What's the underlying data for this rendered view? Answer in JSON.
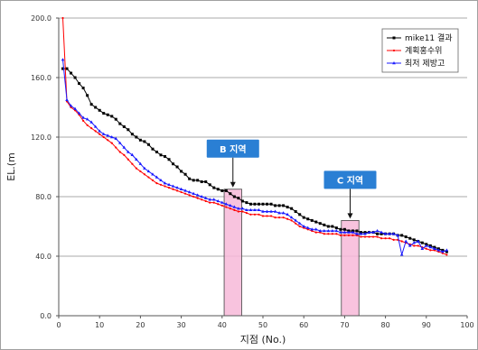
{
  "chart_data": {
    "type": "line",
    "xlabel": "지점 (No.)",
    "ylabel": "EL.(m",
    "xlim": [
      0,
      100
    ],
    "ylim": [
      0,
      200
    ],
    "x_ticks": [
      "0",
      "10",
      "20",
      "30",
      "40",
      "50",
      "60",
      "70",
      "80",
      "90",
      "100"
    ],
    "y_ticks": [
      "0.0",
      "40.0",
      "80.0",
      "120.0",
      "160.0",
      "200.0"
    ],
    "grid": "horizontal",
    "legend_position": "top-right",
    "series": [
      {
        "name": "mike11 결과",
        "color": "#000000",
        "marker": "square",
        "x": [
          1,
          2,
          3,
          4,
          5,
          6,
          7,
          8,
          9,
          10,
          11,
          12,
          13,
          14,
          15,
          16,
          17,
          18,
          19,
          20,
          21,
          22,
          23,
          24,
          25,
          26,
          27,
          28,
          29,
          30,
          31,
          32,
          33,
          34,
          35,
          36,
          37,
          38,
          39,
          40,
          41,
          42,
          43,
          44,
          45,
          46,
          47,
          48,
          49,
          50,
          51,
          52,
          53,
          54,
          55,
          56,
          57,
          58,
          59,
          60,
          61,
          62,
          63,
          64,
          65,
          66,
          67,
          68,
          69,
          70,
          71,
          72,
          73,
          74,
          75,
          76,
          77,
          78,
          79,
          80,
          81,
          82,
          83,
          84,
          85,
          86,
          87,
          88,
          89,
          90,
          91,
          92,
          93,
          94,
          95
        ],
        "y": [
          166,
          166,
          163,
          160,
          156,
          153,
          148,
          142,
          140,
          138,
          136,
          135,
          134,
          132,
          129,
          127,
          125,
          122,
          120,
          118,
          117,
          115,
          112,
          110,
          108,
          107,
          105,
          102,
          100,
          97,
          95,
          92,
          91,
          91,
          90,
          90,
          88,
          86,
          85,
          84,
          84,
          82,
          80,
          79,
          77,
          76,
          75,
          75,
          75,
          75,
          75,
          75,
          74,
          74,
          74,
          73,
          72,
          70,
          68,
          66,
          65,
          64,
          63,
          62,
          61,
          60,
          60,
          59,
          58,
          58,
          57,
          57,
          57,
          56,
          56,
          56,
          56,
          55,
          55,
          55,
          55,
          55,
          54,
          54,
          53,
          52,
          51,
          50,
          49,
          48,
          47,
          46,
          45,
          44,
          43
        ]
      },
      {
        "name": "계획홍수위",
        "color": "#ff0000",
        "marker": "dot",
        "x": [
          1,
          2,
          3,
          4,
          5,
          6,
          7,
          8,
          9,
          10,
          11,
          12,
          13,
          14,
          15,
          16,
          17,
          18,
          19,
          20,
          21,
          22,
          23,
          24,
          25,
          26,
          27,
          28,
          29,
          30,
          31,
          32,
          33,
          34,
          35,
          36,
          37,
          38,
          39,
          40,
          41,
          42,
          43,
          44,
          45,
          46,
          47,
          48,
          49,
          50,
          51,
          52,
          53,
          54,
          55,
          56,
          57,
          58,
          59,
          60,
          61,
          62,
          63,
          64,
          65,
          66,
          67,
          68,
          69,
          70,
          71,
          72,
          73,
          74,
          75,
          76,
          77,
          78,
          79,
          80,
          81,
          82,
          83,
          84,
          85,
          86,
          87,
          88,
          89,
          90,
          91,
          92,
          93,
          94,
          95
        ],
        "y": [
          200,
          144,
          140,
          138,
          135,
          131,
          128,
          126,
          124,
          122,
          120,
          118,
          116,
          113,
          110,
          108,
          105,
          102,
          99,
          97,
          95,
          93,
          91,
          89,
          88,
          87,
          86,
          85,
          84,
          83,
          82,
          81,
          80,
          79,
          78,
          77,
          76,
          76,
          75,
          74,
          73,
          72,
          71,
          70,
          70,
          69,
          68,
          68,
          68,
          67,
          67,
          67,
          66,
          66,
          66,
          65,
          64,
          62,
          60,
          59,
          58,
          57,
          56,
          56,
          55,
          55,
          55,
          55,
          54,
          54,
          54,
          54,
          54,
          53,
          53,
          53,
          53,
          53,
          52,
          52,
          52,
          51,
          51,
          50,
          49,
          48,
          47,
          47,
          46,
          45,
          44,
          44,
          43,
          42,
          41
        ]
      },
      {
        "name": "최저 제방고",
        "color": "#1a1aff",
        "marker": "triangle",
        "x": [
          1,
          2,
          3,
          4,
          5,
          6,
          7,
          8,
          9,
          10,
          11,
          12,
          13,
          14,
          15,
          16,
          17,
          18,
          19,
          20,
          21,
          22,
          23,
          24,
          25,
          26,
          27,
          28,
          29,
          30,
          31,
          32,
          33,
          34,
          35,
          36,
          37,
          38,
          39,
          40,
          41,
          42,
          43,
          44,
          45,
          46,
          47,
          48,
          49,
          50,
          51,
          52,
          53,
          54,
          55,
          56,
          57,
          58,
          59,
          60,
          61,
          62,
          63,
          64,
          65,
          66,
          67,
          68,
          69,
          70,
          71,
          72,
          73,
          74,
          75,
          76,
          77,
          78,
          79,
          80,
          81,
          82,
          83,
          84,
          85,
          86,
          87,
          88,
          89,
          90,
          91,
          92,
          93,
          94,
          95
        ],
        "y": [
          172,
          145,
          141,
          139,
          136,
          133,
          132,
          130,
          127,
          124,
          122,
          121,
          120,
          119,
          116,
          113,
          110,
          108,
          105,
          102,
          99,
          97,
          95,
          93,
          91,
          89,
          88,
          87,
          86,
          85,
          84,
          83,
          82,
          81,
          80,
          79,
          78,
          78,
          77,
          76,
          75,
          74,
          73,
          72,
          72,
          71,
          71,
          71,
          71,
          70,
          70,
          70,
          70,
          69,
          69,
          68,
          66,
          64,
          62,
          60,
          59,
          58,
          58,
          57,
          57,
          57,
          57,
          57,
          56,
          56,
          56,
          56,
          55,
          55,
          55,
          56,
          56,
          57,
          56,
          55,
          55,
          55,
          54,
          41,
          50,
          47,
          49,
          50,
          45,
          47,
          46,
          45,
          44,
          43,
          44
        ]
      }
    ],
    "highlights": [
      {
        "label": "B 지역",
        "x_from": 40.5,
        "x_to": 44.8,
        "y_top": 85
      },
      {
        "label": "C 지역",
        "x_from": 69.2,
        "x_to": 73.5,
        "y_top": 64
      }
    ]
  },
  "style": {
    "callout_fill": "#2a7fd4",
    "highlight_fill": "#f7b9d8",
    "grid_color": "#a8a8a8"
  }
}
